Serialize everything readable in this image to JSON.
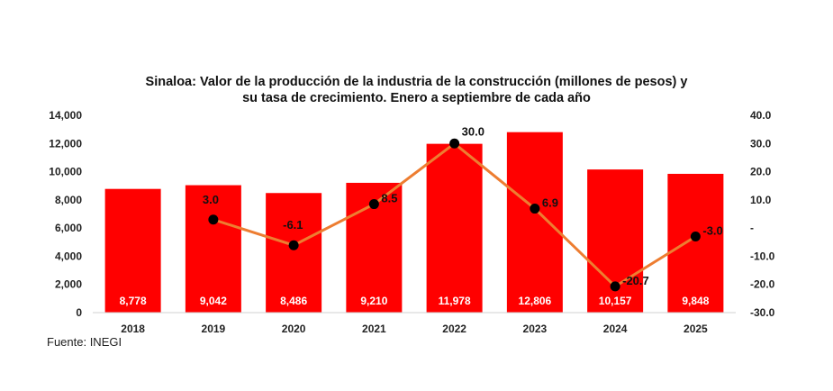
{
  "chart_data": {
    "type": "bar+line",
    "title_line1": "Sinaloa: Valor de la producción de la industria de la construcción (millones de pesos) y",
    "title_line2": "su tasa de crecimiento. Enero a septiembre de cada año",
    "categories": [
      "2018",
      "2019",
      "2020",
      "2021",
      "2022",
      "2023",
      "2024",
      "2025"
    ],
    "bar_series": {
      "values": [
        8778,
        9042,
        8486,
        9210,
        11978,
        12806,
        10157,
        9848
      ],
      "labels": [
        "8,778",
        "9,042",
        "8,486",
        "9,210",
        "11,978",
        "12,806",
        "10,157",
        "9,848"
      ],
      "color": "#FF0000"
    },
    "line_series": {
      "values": [
        null,
        3.0,
        -6.1,
        8.5,
        30.0,
        6.9,
        -20.7,
        -3.0
      ],
      "labels": [
        "",
        "3.0",
        "-6.1",
        "8.5",
        "30.0",
        "6.9",
        "-20.7",
        "-3.0"
      ],
      "color": "#ED7D31",
      "marker_color": "#000000"
    },
    "left_axis": {
      "range": [
        0,
        14000
      ],
      "ticks": [
        "0",
        "2,000",
        "4,000",
        "6,000",
        "8,000",
        "10,000",
        "12,000",
        "14,000"
      ]
    },
    "right_axis": {
      "range": [
        -30,
        40
      ],
      "ticks": [
        "-30.0",
        "-20.0",
        "-10.0",
        "-",
        "10.0",
        "20.0",
        "30.0",
        "40.0"
      ]
    },
    "grid": false,
    "source": "Fuente: INEGI"
  }
}
